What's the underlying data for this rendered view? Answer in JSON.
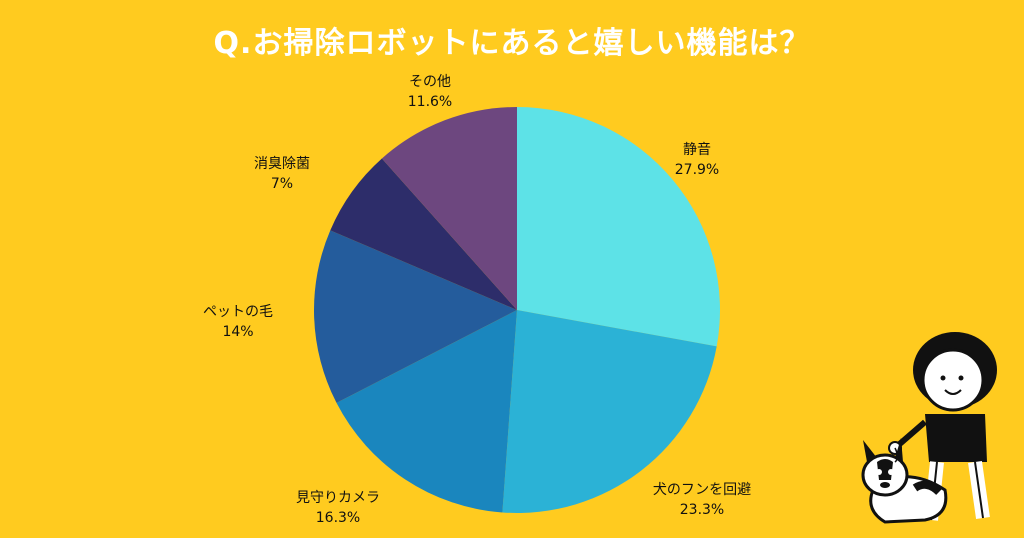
{
  "title": "Q.お掃除ロボットにあると嬉しい機能は？",
  "chart_data": {
    "type": "pie",
    "title": "Q.お掃除ロボットにあると嬉しい機能は？",
    "start": "12 o'clock, clockwise",
    "slices": [
      {
        "label": "静音",
        "value": 27.9,
        "display": "27.9%",
        "color": "#5DE2E7"
      },
      {
        "label": "犬のフンを回避",
        "value": 23.3,
        "display": "23.3%",
        "color": "#2BB2D6"
      },
      {
        "label": "見守りカメラ",
        "value": 16.3,
        "display": "16.3%",
        "color": "#1A86BE"
      },
      {
        "label": "ペットの毛",
        "value": 14,
        "display": "14%",
        "color": "#245C9C"
      },
      {
        "label": "消臭除菌",
        "value": 7,
        "display": "7%",
        "color": "#2D2D6A"
      },
      {
        "label": "その他",
        "value": 11.6,
        "display": "11.6%",
        "color": "#6D477F"
      }
    ]
  },
  "illustration": {
    "icon": "person-walking-dog-icon"
  }
}
